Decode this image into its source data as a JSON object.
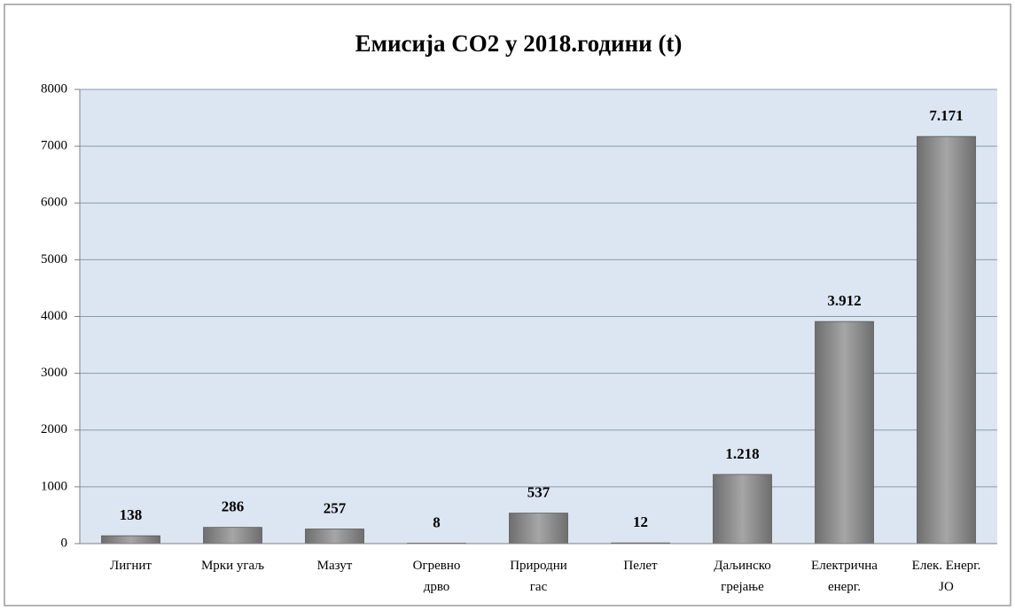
{
  "chart_data": {
    "type": "bar",
    "title": "Емисија CO2 у 2018.години (t)",
    "categories": [
      "Лигнит",
      "Мрки угаљ",
      "Мазут",
      "Огревно\nдрво",
      "Природни\nгас",
      "Пелет",
      "Даљинско\nгрејање",
      "Електрична\nенерг.",
      "Елек. Енерг.\nЈО"
    ],
    "values": [
      138,
      286,
      257,
      8,
      537,
      12,
      1218,
      3912,
      7171
    ],
    "value_labels": [
      "138",
      "286",
      "257",
      "8",
      "537",
      "12",
      "1.218",
      "3.912",
      "7.171"
    ],
    "color": "#8c8c8c",
    "ylim": [
      0,
      8000
    ],
    "yticks": [
      0,
      1000,
      2000,
      3000,
      4000,
      5000,
      6000,
      7000,
      8000
    ],
    "grid": true
  }
}
